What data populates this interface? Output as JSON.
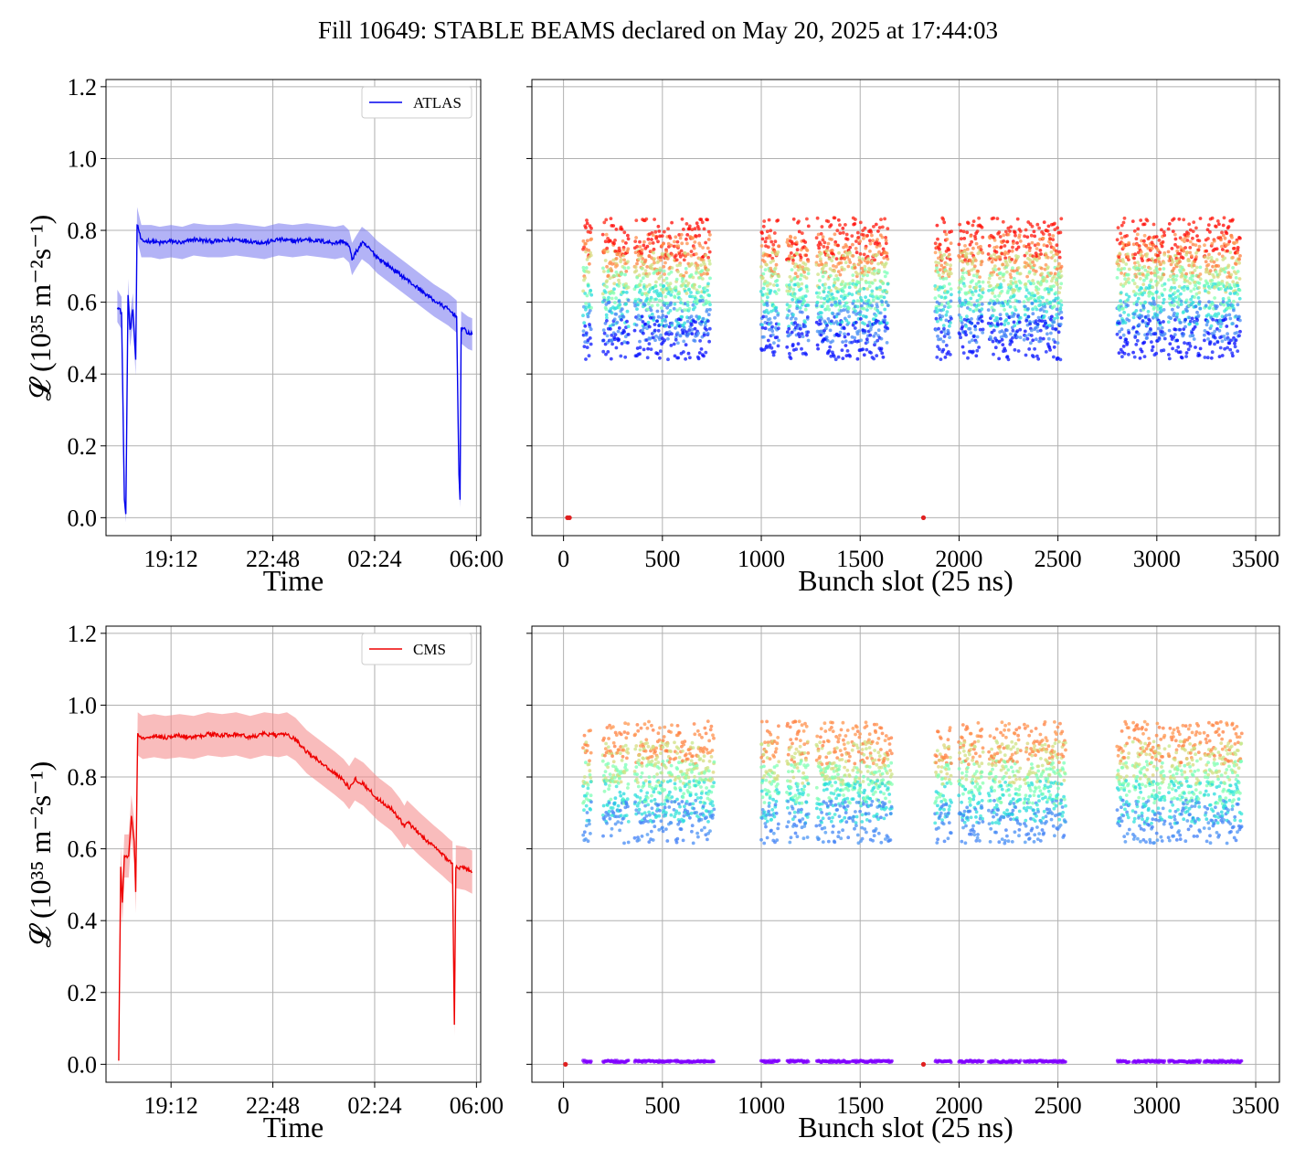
{
  "figure": {
    "title": "Fill 10649: STABLE BEAMS declared on May 20, 2025 at 17:44:03"
  },
  "chart_data": [
    {
      "type": "line",
      "panel": "top-left",
      "xlabel": "Time",
      "ylabel": "𝓛 (10³⁵ m⁻²s⁻¹)",
      "x_tick_labels": [
        "19:12",
        "22:48",
        "02:24",
        "06:00"
      ],
      "x_ticks_hours": [
        19.2,
        22.8,
        26.4,
        30.0
      ],
      "xlim_hours": [
        16.9,
        30.15
      ],
      "ylim": [
        -0.05,
        1.22
      ],
      "y_ticks": [
        0.0,
        0.2,
        0.4,
        0.6,
        0.8,
        1.0,
        1.2
      ],
      "grid": true,
      "legend": "top-right",
      "series": [
        {
          "name": "ATLAS",
          "color": "#0000ee",
          "band_color": "#8080f0",
          "band_halfwidth": 0.045,
          "points": [
            [
              17.3,
              0.59
            ],
            [
              17.45,
              0.57
            ],
            [
              17.55,
              0.05
            ],
            [
              17.6,
              0.01
            ],
            [
              17.68,
              0.62
            ],
            [
              17.75,
              0.52
            ],
            [
              17.85,
              0.58
            ],
            [
              17.95,
              0.44
            ],
            [
              18.0,
              0.82
            ],
            [
              18.15,
              0.77
            ],
            [
              18.5,
              0.77
            ],
            [
              18.8,
              0.765
            ],
            [
              19.2,
              0.77
            ],
            [
              19.6,
              0.765
            ],
            [
              20.0,
              0.775
            ],
            [
              20.5,
              0.77
            ],
            [
              21.0,
              0.77
            ],
            [
              21.5,
              0.775
            ],
            [
              22.0,
              0.77
            ],
            [
              22.5,
              0.765
            ],
            [
              23.0,
              0.775
            ],
            [
              23.5,
              0.77
            ],
            [
              24.0,
              0.775
            ],
            [
              24.5,
              0.77
            ],
            [
              25.0,
              0.765
            ],
            [
              25.3,
              0.77
            ],
            [
              25.5,
              0.755
            ],
            [
              25.6,
              0.72
            ],
            [
              25.75,
              0.74
            ],
            [
              25.95,
              0.765
            ],
            [
              26.2,
              0.75
            ],
            [
              26.5,
              0.725
            ],
            [
              27.0,
              0.695
            ],
            [
              27.5,
              0.665
            ],
            [
              28.0,
              0.635
            ],
            [
              28.5,
              0.605
            ],
            [
              29.0,
              0.58
            ],
            [
              29.3,
              0.56
            ],
            [
              29.38,
              0.12
            ],
            [
              29.42,
              0.05
            ],
            [
              29.46,
              0.53
            ],
            [
              29.7,
              0.515
            ],
            [
              29.85,
              0.51
            ]
          ]
        }
      ]
    },
    {
      "type": "scatter",
      "panel": "top-right",
      "xlabel": "Bunch slot (25 ns)",
      "x_ticks": [
        0,
        500,
        1000,
        1500,
        2000,
        2500,
        3000,
        3500
      ],
      "xlim": [
        -160,
        3620
      ],
      "ylim": [
        -0.05,
        1.22
      ],
      "grid": true,
      "colormap": "rainbow",
      "bunch_trains": [
        [
          100,
          140
        ],
        [
          200,
          330
        ],
        [
          360,
          550
        ],
        [
          560,
          740
        ],
        [
          1000,
          1090
        ],
        [
          1130,
          1240
        ],
        [
          1280,
          1450
        ],
        [
          1460,
          1640
        ],
        [
          1880,
          1960
        ],
        [
          2000,
          2120
        ],
        [
          2150,
          2310
        ],
        [
          2330,
          2520
        ],
        [
          2800,
          2860
        ],
        [
          2880,
          3040
        ],
        [
          3060,
          3220
        ],
        [
          3240,
          3420
        ]
      ],
      "isolated_bunches": [
        [
          20,
          0.0
        ],
        [
          30,
          0.0
        ],
        [
          1820,
          0.0
        ]
      ],
      "typical_range": [
        0.4,
        0.9
      ]
    },
    {
      "type": "line",
      "panel": "bottom-left",
      "xlabel": "Time",
      "ylabel": "𝓛 (10³⁵ m⁻²s⁻¹)",
      "x_tick_labels": [
        "19:12",
        "22:48",
        "02:24",
        "06:00"
      ],
      "x_ticks_hours": [
        19.2,
        22.8,
        26.4,
        30.0
      ],
      "xlim_hours": [
        16.9,
        30.15
      ],
      "ylim": [
        -0.05,
        1.22
      ],
      "y_ticks": [
        0.0,
        0.2,
        0.4,
        0.6,
        0.8,
        1.0,
        1.2
      ],
      "grid": true,
      "legend": "top-right",
      "series": [
        {
          "name": "CMS",
          "color": "#ee0000",
          "band_color": "#f59090",
          "band_halfwidth": 0.06,
          "points": [
            [
              17.35,
              0.01
            ],
            [
              17.42,
              0.55
            ],
            [
              17.48,
              0.45
            ],
            [
              17.55,
              0.58
            ],
            [
              17.7,
              0.58
            ],
            [
              17.8,
              0.69
            ],
            [
              17.9,
              0.62
            ],
            [
              17.95,
              0.48
            ],
            [
              18.02,
              0.92
            ],
            [
              18.2,
              0.91
            ],
            [
              18.6,
              0.915
            ],
            [
              19.0,
              0.91
            ],
            [
              19.5,
              0.915
            ],
            [
              20.0,
              0.91
            ],
            [
              20.5,
              0.92
            ],
            [
              21.0,
              0.915
            ],
            [
              21.5,
              0.92
            ],
            [
              22.0,
              0.91
            ],
            [
              22.5,
              0.92
            ],
            [
              23.0,
              0.915
            ],
            [
              23.3,
              0.92
            ],
            [
              23.6,
              0.905
            ],
            [
              24.0,
              0.87
            ],
            [
              24.5,
              0.84
            ],
            [
              25.0,
              0.81
            ],
            [
              25.3,
              0.79
            ],
            [
              25.5,
              0.77
            ],
            [
              25.7,
              0.795
            ],
            [
              26.0,
              0.78
            ],
            [
              26.5,
              0.74
            ],
            [
              27.0,
              0.71
            ],
            [
              27.3,
              0.68
            ],
            [
              27.45,
              0.66
            ],
            [
              27.55,
              0.675
            ],
            [
              28.0,
              0.64
            ],
            [
              28.5,
              0.605
            ],
            [
              28.8,
              0.585
            ],
            [
              29.0,
              0.57
            ],
            [
              29.15,
              0.56
            ],
            [
              29.22,
              0.11
            ],
            [
              29.27,
              0.55
            ],
            [
              29.6,
              0.545
            ],
            [
              29.85,
              0.535
            ]
          ]
        }
      ]
    },
    {
      "type": "scatter",
      "panel": "bottom-right",
      "xlabel": "Bunch slot (25 ns)",
      "x_ticks": [
        0,
        500,
        1000,
        1500,
        2000,
        2500,
        3000,
        3500
      ],
      "xlim": [
        -160,
        3620
      ],
      "ylim": [
        -0.05,
        1.22
      ],
      "grid": true,
      "colormap": "rainbow",
      "bunch_trains": [
        [
          100,
          140
        ],
        [
          200,
          330
        ],
        [
          360,
          550
        ],
        [
          560,
          760
        ],
        [
          1000,
          1090
        ],
        [
          1130,
          1240
        ],
        [
          1280,
          1450
        ],
        [
          1460,
          1660
        ],
        [
          1880,
          1960
        ],
        [
          2000,
          2120
        ],
        [
          2150,
          2310
        ],
        [
          2330,
          2540
        ],
        [
          2800,
          2860
        ],
        [
          2880,
          3040
        ],
        [
          3060,
          3220
        ],
        [
          3240,
          3430
        ]
      ],
      "isolated_bunches": [
        [
          10,
          0.0
        ],
        [
          1820,
          0.0
        ]
      ],
      "typical_range": [
        0.5,
        1.1
      ],
      "zero_band": true
    }
  ]
}
